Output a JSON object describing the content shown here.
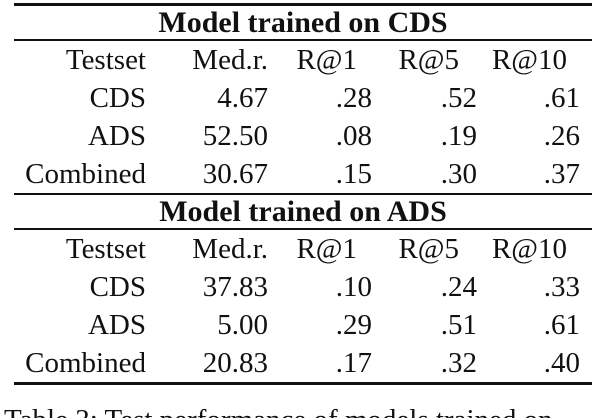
{
  "page": {
    "background": "#ffffff",
    "text_color": "#111111",
    "rule_color": "#111111"
  },
  "tables": [
    {
      "title": "Model trained on CDS",
      "columns": [
        "Testset",
        "Med.r.",
        "R@1",
        "R@5",
        "R@10"
      ],
      "rows": [
        [
          "CDS",
          "4.67",
          ".28",
          ".52",
          ".61"
        ],
        [
          "ADS",
          "52.50",
          ".08",
          ".19",
          ".26"
        ],
        [
          "Combined",
          "30.67",
          ".15",
          ".30",
          ".37"
        ]
      ]
    },
    {
      "title": "Model trained on ADS",
      "columns": [
        "Testset",
        "Med.r.",
        "R@1",
        "R@5",
        "R@10"
      ],
      "rows": [
        [
          "CDS",
          "37.83",
          ".10",
          ".24",
          ".33"
        ],
        [
          "ADS",
          "5.00",
          ".29",
          ".51",
          ".61"
        ],
        [
          "Combined",
          "20.83",
          ".17",
          ".32",
          ".40"
        ]
      ]
    }
  ],
  "caption": {
    "text": "Table 3: Test performance of models trained on"
  }
}
